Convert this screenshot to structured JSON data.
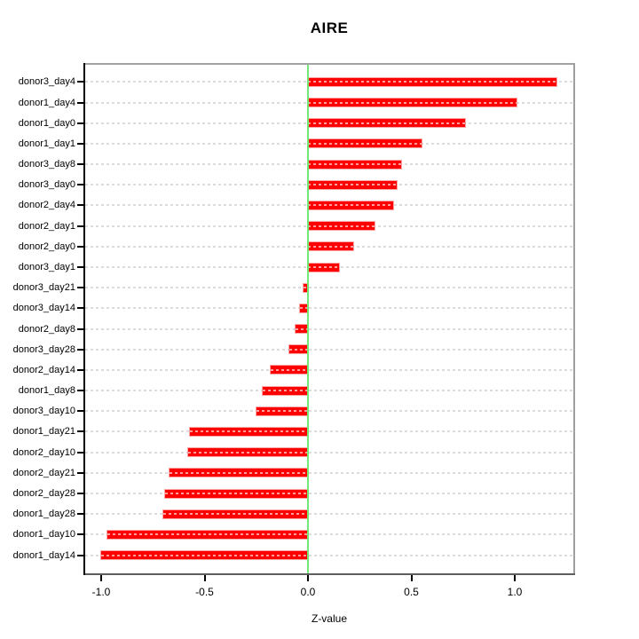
{
  "title": "AIRE",
  "x_axis": {
    "label": "Z-value",
    "ticks": [
      {
        "label": "-1.0",
        "value": -1.0
      },
      {
        "label": "-0.5",
        "value": -0.5
      },
      {
        "label": "0.0",
        "value": 0.0
      },
      {
        "label": "0.5",
        "value": 0.5
      },
      {
        "label": "1.0",
        "value": 1.0
      }
    ]
  },
  "colors": {
    "bar": "#ff0000",
    "zero_line": "#74e874",
    "grid_line": "#dcdcdc",
    "box_border": "#a0a0a0",
    "axis_line": "#000000",
    "text": "#000000"
  },
  "chart_data": {
    "type": "bar",
    "orientation": "horizontal",
    "title": "AIRE",
    "xlabel": "Z-value",
    "ylabel": "",
    "xlim": [
      -1.09,
      1.29
    ],
    "grid": true,
    "zero_line_at": 0,
    "categories": [
      "donor3_day4",
      "donor1_day4",
      "donor1_day0",
      "donor1_day1",
      "donor3_day8",
      "donor3_day0",
      "donor2_day4",
      "donor2_day1",
      "donor2_day0",
      "donor3_day1",
      "donor3_day21",
      "donor3_day14",
      "donor2_day8",
      "donor3_day28",
      "donor2_day14",
      "donor1_day8",
      "donor3_day10",
      "donor1_day21",
      "donor2_day10",
      "donor2_day21",
      "donor2_day28",
      "donor1_day28",
      "donor1_day10",
      "donor1_day14"
    ],
    "values": [
      1.2,
      1.01,
      0.76,
      0.55,
      0.45,
      0.43,
      0.41,
      0.32,
      0.22,
      0.15,
      -0.02,
      -0.04,
      -0.06,
      -0.09,
      -0.18,
      -0.22,
      -0.25,
      -0.57,
      -0.58,
      -0.67,
      -0.69,
      -0.7,
      -0.97,
      -1.0
    ]
  }
}
